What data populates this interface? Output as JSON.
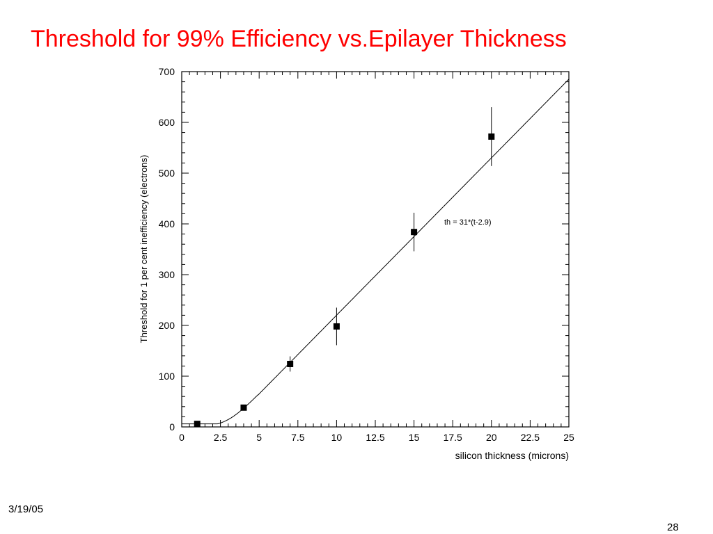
{
  "slide": {
    "title": "Threshold for 99% Efficiency vs.Epilayer Thickness",
    "date": "3/19/05",
    "page_number": "28"
  },
  "colors": {
    "title": "#ff0000",
    "plot": "#000000"
  },
  "chart_data": {
    "type": "scatter",
    "xlabel": "silicon thickness (microns)",
    "ylabel": "Threshold for 1 per cent inefficiency (electrons)",
    "xlim": [
      0,
      25
    ],
    "ylim": [
      0,
      700
    ],
    "xticks": [
      "0",
      "2.5",
      "5",
      "7.5",
      "10",
      "12.5",
      "15",
      "17.5",
      "20",
      "22.5",
      "25"
    ],
    "yticks": [
      "0",
      "100",
      "200",
      "300",
      "400",
      "500",
      "600",
      "700"
    ],
    "grid": false,
    "points": [
      {
        "x": 1,
        "y": 6,
        "err": 0
      },
      {
        "x": 4,
        "y": 38,
        "err": 0
      },
      {
        "x": 7,
        "y": 124,
        "err": 15
      },
      {
        "x": 10,
        "y": 198,
        "err": 37
      },
      {
        "x": 15,
        "y": 384,
        "err": 38
      },
      {
        "x": 20,
        "y": 572,
        "err": 58
      }
    ],
    "fit": {
      "label": "th = 31*(t-2.9)",
      "slope": 31,
      "offset": 2.9,
      "baseline": 6
    }
  }
}
